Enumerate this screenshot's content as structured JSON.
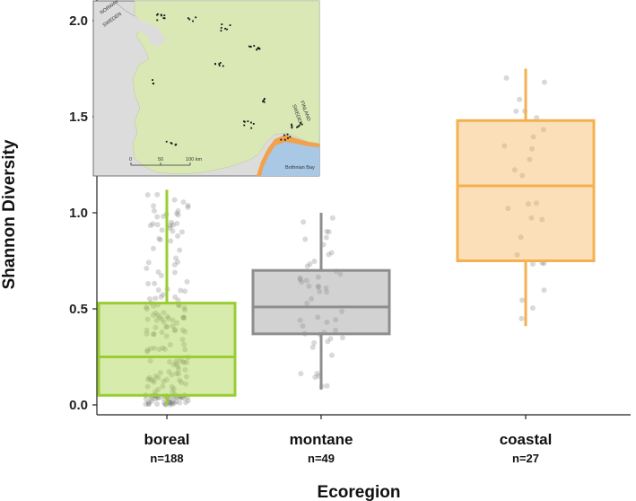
{
  "chart_data": {
    "type": "box",
    "title": "",
    "xlabel": "Ecoregion",
    "ylabel": "Shannon Diversity",
    "ylim": [
      -0.05,
      2.1
    ],
    "yticks": [
      "0.0",
      "0.5",
      "1.0",
      "1.5",
      "2.0"
    ],
    "grid": false,
    "categories": [
      "boreal",
      "montane",
      "coastal"
    ],
    "counts": [
      "n=188",
      "n=49",
      "n=27"
    ],
    "colors": [
      "#9ACD32",
      "#8E8E8E",
      "#F5B04F"
    ],
    "boxes": [
      {
        "name": "boreal",
        "whisker_low": 0.0,
        "q1": 0.05,
        "median": 0.25,
        "q3": 0.53,
        "whisker_high": 1.12
      },
      {
        "name": "montane",
        "whisker_low": 0.08,
        "q1": 0.37,
        "median": 0.51,
        "q3": 0.7,
        "whisker_high": 1.0
      },
      {
        "name": "coastal",
        "whisker_low": 0.41,
        "q1": 0.75,
        "median": 1.14,
        "q3": 1.48,
        "whisker_high": 1.75
      }
    ]
  },
  "inset_map": {
    "labels": [
      "NORWAY",
      "SWEDEN",
      "FINLAND",
      "SWEDEN",
      "Bothnian Bay"
    ],
    "scale_labels": [
      "0",
      "50",
      "100 km"
    ],
    "colors": {
      "land": "#d9e8b4",
      "water": "#dcdcdc",
      "sea": "#a9c8e6",
      "coast": "#f0a24d",
      "sites": "#111111"
    }
  }
}
